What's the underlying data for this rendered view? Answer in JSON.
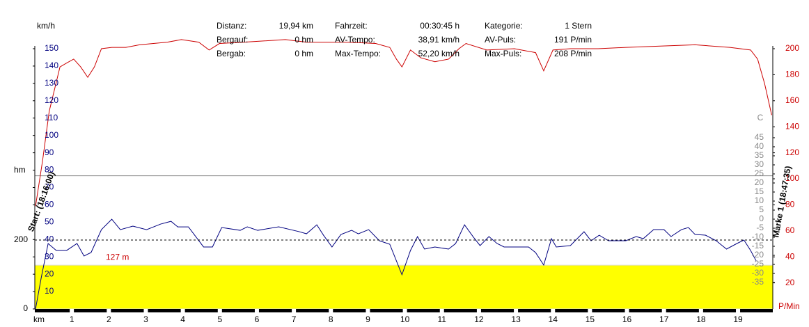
{
  "header": {
    "rows": [
      [
        "Distanz:",
        "19,94 km",
        "Fahrzeit:",
        "00:30:45 h",
        "Kategorie:",
        "1 Stern"
      ],
      [
        "Bergauf:",
        "0 hm",
        "AV-Tempo:",
        "38,91 km/h",
        "AV-Puls:",
        "191 P/min"
      ],
      [
        "Bergab:",
        "0 hm",
        "Max-Tempo:",
        "52,20 km/h",
        "Max-Puls:",
        "208 P/min"
      ]
    ]
  },
  "chart_data": {
    "type": "line",
    "xlabel": "km",
    "xlim": [
      0,
      19.94
    ],
    "xticks": [
      1,
      2,
      3,
      4,
      5,
      6,
      7,
      8,
      9,
      10,
      11,
      12,
      13,
      14,
      15,
      16,
      17,
      18,
      19
    ],
    "axes": [
      {
        "label": "km/h",
        "color": "#000080",
        "ylim": [
          0,
          150
        ],
        "yticks": [
          10,
          20,
          30,
          40,
          50,
          60,
          70,
          80,
          90,
          100,
          110,
          120,
          130,
          140,
          150
        ]
      },
      {
        "label": "hm",
        "color": "#000000",
        "ylim": [
          0,
          756
        ],
        "yticks": [
          0,
          200
        ],
        "grid": "dashed"
      },
      {
        "label": "P/Min",
        "color": "#cc0000",
        "ylim": [
          0,
          200
        ],
        "yticks": [
          20,
          40,
          60,
          80,
          100,
          120,
          140,
          160,
          180,
          200
        ]
      },
      {
        "label": "C",
        "color": "#888888",
        "ylim": [
          -49.6,
          94.2
        ],
        "yticks": [
          45,
          40,
          35,
          30,
          25,
          20,
          15,
          10,
          5,
          0,
          -5,
          -10,
          -15,
          -20,
          -25,
          -30,
          -35
        ]
      }
    ],
    "series": [
      {
        "axis": 1,
        "kind": "area",
        "color": "#ffff00",
        "x": [
          0,
          19.94
        ],
        "values": [
          127,
          127
        ],
        "value_labels": [
          "127 m",
          null
        ]
      },
      {
        "axis": 3,
        "kind": "line",
        "color": "#888888",
        "x": [
          0,
          19.94
        ],
        "values": [
          24,
          24
        ]
      },
      {
        "axis": 0,
        "kind": "line",
        "color": "#000080",
        "x": [
          0.02,
          0.17,
          0.36,
          0.58,
          0.86,
          1.14,
          1.33,
          1.52,
          1.8,
          2.08,
          2.31,
          2.65,
          3.02,
          3.4,
          3.68,
          3.86,
          4.15,
          4.56,
          4.8,
          5.05,
          5.55,
          5.74,
          6.02,
          6.59,
          7.15,
          7.34,
          7.62,
          7.8,
          8.03,
          8.27,
          8.56,
          8.74,
          9.02,
          9.31,
          9.59,
          9.92,
          10.15,
          10.34,
          10.53,
          10.81,
          11.18,
          11.37,
          11.61,
          11.84,
          12.03,
          12.27,
          12.49,
          12.68,
          13.34,
          13.53,
          13.75,
          13.96,
          14.09,
          14.47,
          14.84,
          15.03,
          15.25,
          15.5,
          15.97,
          16.25,
          16.44,
          16.72,
          17.0,
          17.19,
          17.47,
          17.66,
          17.84,
          18.12,
          18.41,
          18.69,
          18.97,
          19.16,
          19.34,
          19.49
        ],
        "values": [
          0,
          17.6,
          37.7,
          33.7,
          33.7,
          37.7,
          30.5,
          32.5,
          45.7,
          51.7,
          45.7,
          47.7,
          45.7,
          48.9,
          50.5,
          47.3,
          47.3,
          35.7,
          35.7,
          46.9,
          45.3,
          47.3,
          45.3,
          47.3,
          44.5,
          43.3,
          48.5,
          42.5,
          35.7,
          42.9,
          45.3,
          43.3,
          45.7,
          39.3,
          37.3,
          19.7,
          33.7,
          41.7,
          34.5,
          35.7,
          34.5,
          37.7,
          48.5,
          41.7,
          36.5,
          41.7,
          37.7,
          35.7,
          35.7,
          32.5,
          25.3,
          40.5,
          35.7,
          36.5,
          44.5,
          39.3,
          42.5,
          39.3,
          39.3,
          41.7,
          40.5,
          45.7,
          45.7,
          41.7,
          45.7,
          46.9,
          42.9,
          42.5,
          39.3,
          34.5,
          37.7,
          39.7,
          33.7,
          27.7
        ]
      },
      {
        "axis": 2,
        "kind": "line",
        "color": "#cc0000",
        "x": [
          0.02,
          0.21,
          0.39,
          0.68,
          0.86,
          1.05,
          1.24,
          1.43,
          1.61,
          1.8,
          2.08,
          2.46,
          2.83,
          3.58,
          3.96,
          4.43,
          4.71,
          4.99,
          5.65,
          6.21,
          6.77,
          7.34,
          7.9,
          8.46,
          9.21,
          9.59,
          9.77,
          9.92,
          10.15,
          10.43,
          10.81,
          11.18,
          11.46,
          11.65,
          12.21,
          12.96,
          13.53,
          13.75,
          14.0,
          14.47,
          15.22,
          15.97,
          16.9,
          17.84,
          18.78,
          19.34,
          19.53,
          19.72,
          19.91
        ],
        "values": [
          79,
          114,
          152,
          186,
          189,
          192,
          186,
          178,
          186,
          200,
          201,
          201,
          203,
          205,
          207,
          205,
          199,
          204,
          205,
          206,
          207,
          205,
          205,
          205,
          204,
          201,
          192,
          186,
          199,
          193,
          190,
          192,
          200,
          204,
          199,
          200,
          197,
          183,
          199,
          200,
          200,
          201,
          202,
          203,
          201,
          199,
          192,
          173,
          149
        ]
      }
    ],
    "markers": [
      {
        "label": "Start: (18:16:00)"
      },
      {
        "label": "Marke 1 (18:47:35)"
      }
    ]
  }
}
